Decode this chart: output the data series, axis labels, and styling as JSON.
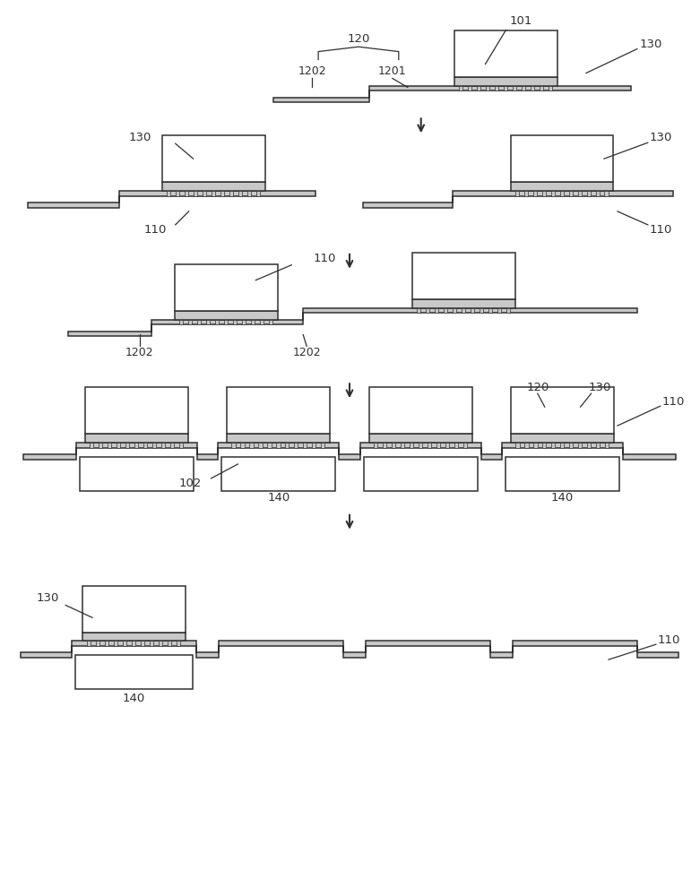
{
  "bg_color": "#ffffff",
  "line_color": "#303030",
  "gray_fill": "#c8c8c8",
  "white_fill": "#ffffff",
  "label_color": "#303030",
  "figsize": [
    7.81,
    10.0
  ],
  "dpi": 100
}
